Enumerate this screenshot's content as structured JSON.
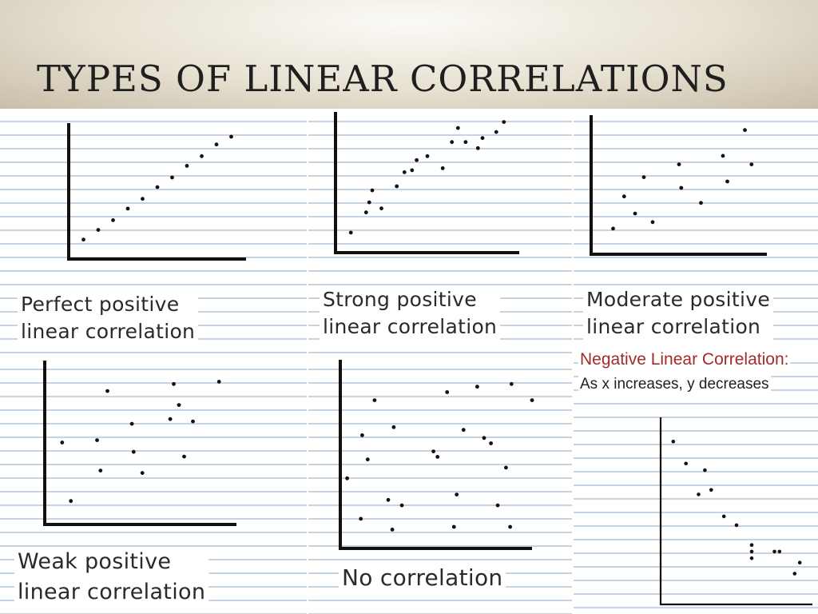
{
  "slide": {
    "title": "TYPES OF LINEAR CORRELATIONS"
  },
  "chart_data": [
    {
      "type": "scatter",
      "label": [
        "Perfect positive",
        "linear correlation"
      ],
      "points": [
        [
          1,
          1
        ],
        [
          2,
          1.5
        ],
        [
          3,
          2
        ],
        [
          4,
          2.6
        ],
        [
          5,
          3.1
        ],
        [
          6,
          3.7
        ],
        [
          7,
          4.2
        ],
        [
          8,
          4.8
        ],
        [
          9,
          5.3
        ],
        [
          10,
          5.9
        ],
        [
          11,
          6.3
        ]
      ]
    },
    {
      "type": "scatter",
      "label": [
        "Strong positive",
        "linear correlation"
      ],
      "points": [
        [
          1,
          1
        ],
        [
          2,
          2
        ],
        [
          2.2,
          2.5
        ],
        [
          2.4,
          3.1
        ],
        [
          3,
          2.2
        ],
        [
          4,
          3.3
        ],
        [
          4.5,
          4
        ],
        [
          5,
          4.1
        ],
        [
          5.3,
          4.6
        ],
        [
          6,
          4.8
        ],
        [
          7,
          4.2
        ],
        [
          7.6,
          5.5
        ],
        [
          8,
          6.2
        ],
        [
          8.5,
          5.5
        ],
        [
          9.3,
          5.2
        ],
        [
          9.6,
          5.7
        ],
        [
          10.5,
          6
        ],
        [
          11,
          6.5
        ]
      ]
    },
    {
      "type": "scatter",
      "label": [
        "Moderate positive",
        "linear correlation"
      ],
      "points": [
        [
          1,
          1.2
        ],
        [
          1.5,
          2.7
        ],
        [
          2,
          1.9
        ],
        [
          2.4,
          3.6
        ],
        [
          2.8,
          1.5
        ],
        [
          4,
          4.2
        ],
        [
          4.1,
          3.1
        ],
        [
          5,
          2.4
        ],
        [
          6,
          4.6
        ],
        [
          6.2,
          3.4
        ],
        [
          7,
          5.8
        ],
        [
          7.3,
          4.2
        ]
      ]
    },
    {
      "type": "scatter",
      "label": [
        "Weak positive",
        "linear correlation"
      ],
      "points": [
        [
          1,
          3.5
        ],
        [
          1.5,
          1
        ],
        [
          3,
          3.6
        ],
        [
          3.2,
          2.3
        ],
        [
          3.6,
          5.7
        ],
        [
          5,
          4.3
        ],
        [
          5.1,
          3.1
        ],
        [
          5.6,
          2.2
        ],
        [
          7.2,
          4.5
        ],
        [
          7.4,
          6
        ],
        [
          7.7,
          5.1
        ],
        [
          8,
          2.9
        ],
        [
          8.5,
          4.4
        ],
        [
          10,
          6.1
        ]
      ]
    },
    {
      "type": "scatter",
      "label": [
        "No correlation"
      ],
      "points": [
        [
          0.5,
          2.6
        ],
        [
          1.5,
          1.1
        ],
        [
          1.6,
          4.2
        ],
        [
          2,
          3.3
        ],
        [
          2.5,
          5.5
        ],
        [
          3.5,
          1.8
        ],
        [
          3.8,
          0.7
        ],
        [
          3.9,
          4.5
        ],
        [
          4.5,
          1.6
        ],
        [
          6.8,
          3.6
        ],
        [
          7.1,
          3.4
        ],
        [
          7.8,
          5.8
        ],
        [
          8.3,
          0.8
        ],
        [
          8.5,
          2
        ],
        [
          9,
          4.4
        ],
        [
          10,
          6
        ],
        [
          10.5,
          4.1
        ],
        [
          11,
          3.9
        ],
        [
          11.5,
          1.6
        ],
        [
          12.1,
          3
        ],
        [
          12.4,
          0.8
        ],
        [
          12.5,
          6.1
        ],
        [
          14,
          5.5
        ]
      ]
    },
    {
      "type": "scatter",
      "label": [
        "Negative Linear Correlation:",
        "As x increases, y decreases"
      ],
      "points": [
        [
          1,
          7.4
        ],
        [
          2,
          6.4
        ],
        [
          3,
          5
        ],
        [
          3.5,
          6.1
        ],
        [
          4,
          5.2
        ],
        [
          5,
          4
        ],
        [
          6,
          3.6
        ],
        [
          7.2,
          2.7
        ],
        [
          7.2,
          2.4
        ],
        [
          7.2,
          2.1
        ],
        [
          9,
          2.4
        ],
        [
          9.4,
          2.4
        ],
        [
          10.6,
          1.4
        ],
        [
          11,
          1.9
        ]
      ]
    }
  ]
}
